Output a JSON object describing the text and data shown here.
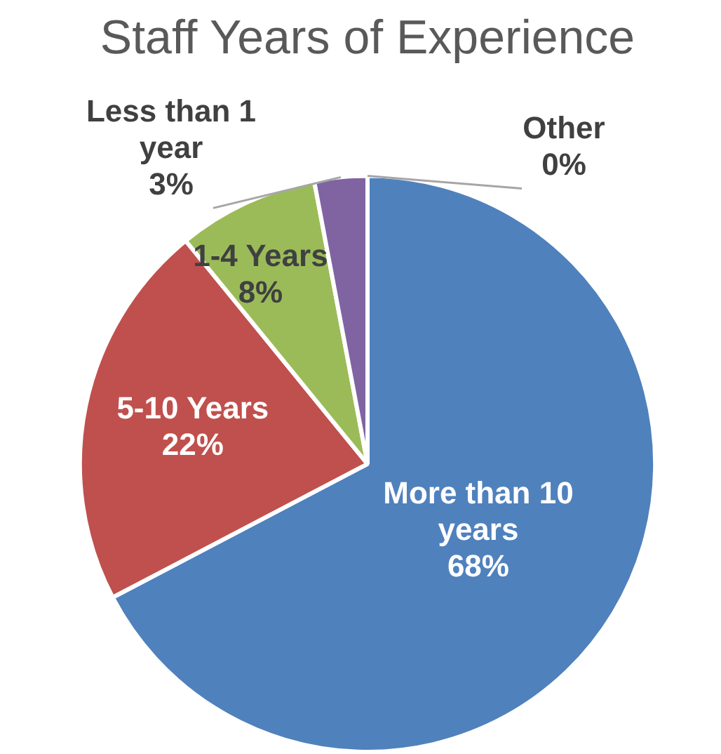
{
  "chart_data": {
    "type": "pie",
    "title": "Staff Years of Experience",
    "categories": [
      "More than 10 years",
      "5-10 Years",
      "1-4 Years",
      "Less than 1 year",
      "Other"
    ],
    "values": [
      68,
      22,
      8,
      3,
      0
    ],
    "value_labels": [
      "68%",
      "22%",
      "8%",
      "3%",
      "0%"
    ],
    "colors": [
      "#4f81bd",
      "#c0504d",
      "#9bbb59",
      "#8064a2",
      "#dbe5f1"
    ],
    "legend": false
  }
}
